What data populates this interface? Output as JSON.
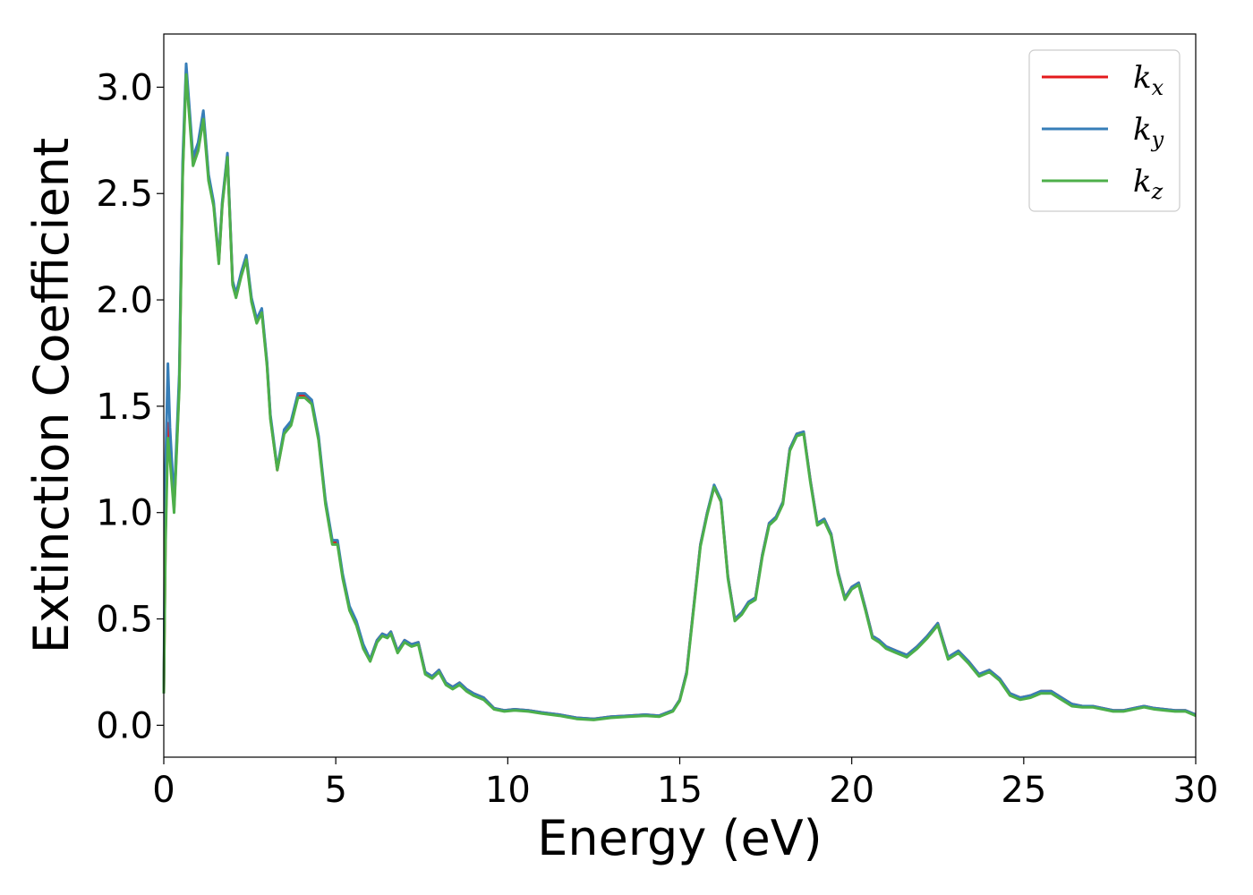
{
  "chart_data": {
    "type": "line",
    "title": "",
    "xlabel": "Energy (eV)",
    "ylabel": "Extinction Coefficient",
    "xlim": [
      0,
      30
    ],
    "ylim": [
      -0.15,
      3.25
    ],
    "x_ticks": [
      0,
      5,
      10,
      15,
      20,
      25,
      30
    ],
    "y_ticks": [
      0.0,
      0.5,
      1.0,
      1.5,
      2.0,
      2.5,
      3.0
    ],
    "x_tick_labels": [
      "0",
      "5",
      "10",
      "15",
      "20",
      "25",
      "30"
    ],
    "y_tick_labels": [
      "0.0",
      "0.5",
      "1.0",
      "1.5",
      "2.0",
      "2.5",
      "3.0"
    ],
    "grid": false,
    "legend_position": "top-right",
    "legend": [
      {
        "base": "k",
        "sub": "x",
        "color": "#e41a1c"
      },
      {
        "base": "k",
        "sub": "y",
        "color": "#377eb8"
      },
      {
        "base": "k",
        "sub": "z",
        "color": "#4daf4a"
      }
    ],
    "x": [
      0.0,
      0.05,
      0.12,
      0.18,
      0.3,
      0.45,
      0.55,
      0.65,
      0.85,
      1.0,
      1.15,
      1.3,
      1.45,
      1.6,
      1.7,
      1.85,
      2.0,
      2.1,
      2.25,
      2.4,
      2.55,
      2.7,
      2.85,
      3.0,
      3.1,
      3.3,
      3.5,
      3.7,
      3.9,
      4.1,
      4.3,
      4.5,
      4.7,
      4.9,
      5.05,
      5.2,
      5.4,
      5.6,
      5.8,
      6.0,
      6.2,
      6.35,
      6.5,
      6.6,
      6.8,
      7.0,
      7.2,
      7.4,
      7.6,
      7.8,
      8.0,
      8.2,
      8.4,
      8.6,
      8.8,
      9.0,
      9.3,
      9.6,
      9.9,
      10.2,
      10.6,
      11.0,
      11.5,
      12.0,
      12.5,
      13.0,
      13.5,
      14.0,
      14.4,
      14.8,
      15.0,
      15.2,
      15.4,
      15.6,
      15.8,
      16.0,
      16.2,
      16.4,
      16.6,
      16.8,
      17.0,
      17.2,
      17.4,
      17.6,
      17.8,
      18.0,
      18.2,
      18.4,
      18.6,
      18.8,
      19.0,
      19.2,
      19.4,
      19.6,
      19.8,
      20.0,
      20.2,
      20.4,
      20.6,
      20.8,
      21.0,
      21.3,
      21.6,
      21.9,
      22.2,
      22.5,
      22.8,
      23.1,
      23.4,
      23.7,
      24.0,
      24.3,
      24.6,
      24.9,
      25.2,
      25.5,
      25.8,
      26.1,
      26.4,
      26.7,
      27.0,
      27.3,
      27.6,
      27.9,
      28.2,
      28.5,
      28.8,
      29.1,
      29.4,
      29.7,
      30.0
    ],
    "series": [
      {
        "name": "kx",
        "color": "#e41a1c",
        "values": [
          0.15,
          0.9,
          1.42,
          1.3,
          1.02,
          1.6,
          2.6,
          3.08,
          2.65,
          2.72,
          2.87,
          2.58,
          2.45,
          2.18,
          2.45,
          2.68,
          2.08,
          2.02,
          2.12,
          2.2,
          2.0,
          1.9,
          1.95,
          1.7,
          1.45,
          1.2,
          1.38,
          1.42,
          1.55,
          1.55,
          1.52,
          1.35,
          1.05,
          0.86,
          0.86,
          0.7,
          0.55,
          0.48,
          0.37,
          0.31,
          0.4,
          0.43,
          0.42,
          0.44,
          0.35,
          0.4,
          0.38,
          0.39,
          0.25,
          0.23,
          0.26,
          0.2,
          0.18,
          0.2,
          0.17,
          0.15,
          0.13,
          0.08,
          0.07,
          0.075,
          0.07,
          0.06,
          0.05,
          0.035,
          0.03,
          0.04,
          0.045,
          0.05,
          0.045,
          0.07,
          0.12,
          0.25,
          0.55,
          0.85,
          1.0,
          1.12,
          1.05,
          0.7,
          0.5,
          0.53,
          0.58,
          0.6,
          0.8,
          0.95,
          0.98,
          1.05,
          1.3,
          1.37,
          1.38,
          1.15,
          0.95,
          0.97,
          0.9,
          0.72,
          0.6,
          0.65,
          0.67,
          0.55,
          0.42,
          0.4,
          0.37,
          0.35,
          0.33,
          0.37,
          0.42,
          0.48,
          0.32,
          0.35,
          0.3,
          0.24,
          0.26,
          0.22,
          0.15,
          0.13,
          0.14,
          0.16,
          0.16,
          0.13,
          0.1,
          0.09,
          0.09,
          0.08,
          0.07,
          0.07,
          0.08,
          0.09,
          0.08,
          0.075,
          0.07,
          0.07,
          0.05
        ]
      },
      {
        "name": "ky",
        "color": "#377eb8",
        "values": [
          0.15,
          1.2,
          1.7,
          1.4,
          1.05,
          1.65,
          2.65,
          3.11,
          2.67,
          2.74,
          2.89,
          2.59,
          2.46,
          2.19,
          2.46,
          2.69,
          2.09,
          2.03,
          2.13,
          2.21,
          2.01,
          1.91,
          1.96,
          1.71,
          1.46,
          1.21,
          1.39,
          1.43,
          1.56,
          1.56,
          1.53,
          1.36,
          1.06,
          0.87,
          0.87,
          0.71,
          0.56,
          0.49,
          0.38,
          0.31,
          0.4,
          0.43,
          0.42,
          0.44,
          0.35,
          0.4,
          0.38,
          0.39,
          0.25,
          0.23,
          0.26,
          0.2,
          0.18,
          0.2,
          0.17,
          0.15,
          0.13,
          0.08,
          0.07,
          0.075,
          0.07,
          0.06,
          0.05,
          0.035,
          0.03,
          0.04,
          0.045,
          0.05,
          0.045,
          0.07,
          0.12,
          0.25,
          0.55,
          0.85,
          1.0,
          1.13,
          1.06,
          0.7,
          0.5,
          0.53,
          0.58,
          0.6,
          0.8,
          0.95,
          0.98,
          1.05,
          1.3,
          1.37,
          1.38,
          1.15,
          0.95,
          0.97,
          0.9,
          0.72,
          0.6,
          0.65,
          0.67,
          0.55,
          0.42,
          0.4,
          0.37,
          0.35,
          0.33,
          0.37,
          0.42,
          0.48,
          0.32,
          0.35,
          0.3,
          0.24,
          0.26,
          0.22,
          0.15,
          0.13,
          0.14,
          0.16,
          0.16,
          0.13,
          0.1,
          0.09,
          0.09,
          0.08,
          0.07,
          0.07,
          0.08,
          0.09,
          0.08,
          0.075,
          0.07,
          0.07,
          0.05
        ]
      },
      {
        "name": "kz",
        "color": "#4daf4a",
        "values": [
          0.15,
          0.85,
          1.35,
          1.25,
          1.0,
          1.58,
          2.58,
          3.06,
          2.63,
          2.7,
          2.85,
          2.56,
          2.44,
          2.17,
          2.44,
          2.67,
          2.07,
          2.01,
          2.11,
          2.19,
          1.99,
          1.89,
          1.94,
          1.69,
          1.44,
          1.2,
          1.37,
          1.41,
          1.54,
          1.54,
          1.51,
          1.34,
          1.04,
          0.85,
          0.85,
          0.69,
          0.54,
          0.47,
          0.36,
          0.3,
          0.39,
          0.42,
          0.41,
          0.43,
          0.34,
          0.39,
          0.37,
          0.38,
          0.24,
          0.22,
          0.25,
          0.19,
          0.17,
          0.19,
          0.16,
          0.14,
          0.12,
          0.075,
          0.065,
          0.07,
          0.065,
          0.055,
          0.045,
          0.03,
          0.025,
          0.035,
          0.04,
          0.045,
          0.04,
          0.065,
          0.115,
          0.24,
          0.54,
          0.84,
          0.99,
          1.12,
          1.05,
          0.69,
          0.49,
          0.52,
          0.57,
          0.59,
          0.79,
          0.94,
          0.97,
          1.04,
          1.29,
          1.36,
          1.37,
          1.14,
          0.94,
          0.96,
          0.89,
          0.71,
          0.59,
          0.64,
          0.66,
          0.54,
          0.41,
          0.39,
          0.36,
          0.34,
          0.32,
          0.36,
          0.41,
          0.47,
          0.31,
          0.34,
          0.29,
          0.23,
          0.25,
          0.21,
          0.14,
          0.12,
          0.13,
          0.15,
          0.15,
          0.12,
          0.09,
          0.085,
          0.085,
          0.075,
          0.065,
          0.065,
          0.075,
          0.085,
          0.075,
          0.07,
          0.065,
          0.065,
          0.045
        ]
      }
    ]
  }
}
